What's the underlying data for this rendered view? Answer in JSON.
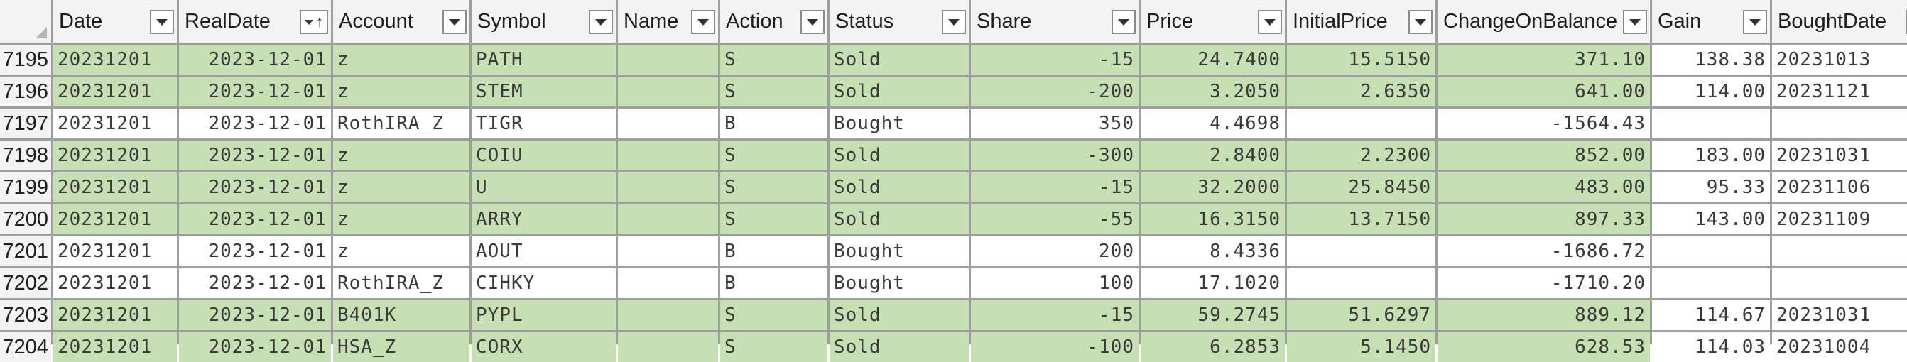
{
  "colors": {
    "sold_fill": "#c6e0b4",
    "bought_fill": "#ffffff",
    "header_fill": "#f3f3f3",
    "grid_line": "#9e9e9e"
  },
  "headers": [
    "Date",
    "RealDate",
    "Account",
    "Symbol",
    "Name",
    "Action",
    "Status",
    "Share",
    "Price",
    "InitialPrice",
    "ChangeOnBalance",
    "Gain",
    "BoughtDate"
  ],
  "header_icons": [
    "dropdown-arrow-icon",
    "sort-ascending-icon"
  ],
  "rows": [
    {
      "num": "7195",
      "Date": "20231201",
      "RealDate": "2023-12-01",
      "Account": "z",
      "Symbol": "PATH",
      "Name": "",
      "Action": "S",
      "Status": "Sold",
      "Share": "-15",
      "Price": "24.7400",
      "InitialPrice": "15.5150",
      "ChangeOnBalance": "371.10",
      "Gain": "138.38",
      "BoughtDate": "20231013"
    },
    {
      "num": "7196",
      "Date": "20231201",
      "RealDate": "2023-12-01",
      "Account": "z",
      "Symbol": "STEM",
      "Name": "",
      "Action": "S",
      "Status": "Sold",
      "Share": "-200",
      "Price": "3.2050",
      "InitialPrice": "2.6350",
      "ChangeOnBalance": "641.00",
      "Gain": "114.00",
      "BoughtDate": "20231121"
    },
    {
      "num": "7197",
      "Date": "20231201",
      "RealDate": "2023-12-01",
      "Account": "RothIRA_Z",
      "Symbol": "TIGR",
      "Name": "",
      "Action": "B",
      "Status": "Bought",
      "Share": "350",
      "Price": "4.4698",
      "InitialPrice": "",
      "ChangeOnBalance": "-1564.43",
      "Gain": "",
      "BoughtDate": ""
    },
    {
      "num": "7198",
      "Date": "20231201",
      "RealDate": "2023-12-01",
      "Account": "z",
      "Symbol": "COIU",
      "Name": "",
      "Action": "S",
      "Status": "Sold",
      "Share": "-300",
      "Price": "2.8400",
      "InitialPrice": "2.2300",
      "ChangeOnBalance": "852.00",
      "Gain": "183.00",
      "BoughtDate": "20231031"
    },
    {
      "num": "7199",
      "Date": "20231201",
      "RealDate": "2023-12-01",
      "Account": "z",
      "Symbol": "U",
      "Name": "",
      "Action": "S",
      "Status": "Sold",
      "Share": "-15",
      "Price": "32.2000",
      "InitialPrice": "25.8450",
      "ChangeOnBalance": "483.00",
      "Gain": "95.33",
      "BoughtDate": "20231106"
    },
    {
      "num": "7200",
      "Date": "20231201",
      "RealDate": "2023-12-01",
      "Account": "z",
      "Symbol": "ARRY",
      "Name": "",
      "Action": "S",
      "Status": "Sold",
      "Share": "-55",
      "Price": "16.3150",
      "InitialPrice": "13.7150",
      "ChangeOnBalance": "897.33",
      "Gain": "143.00",
      "BoughtDate": "20231109"
    },
    {
      "num": "7201",
      "Date": "20231201",
      "RealDate": "2023-12-01",
      "Account": "z",
      "Symbol": "AOUT",
      "Name": "",
      "Action": "B",
      "Status": "Bought",
      "Share": "200",
      "Price": "8.4336",
      "InitialPrice": "",
      "ChangeOnBalance": "-1686.72",
      "Gain": "",
      "BoughtDate": ""
    },
    {
      "num": "7202",
      "Date": "20231201",
      "RealDate": "2023-12-01",
      "Account": "RothIRA_Z",
      "Symbol": "CIHKY",
      "Name": "",
      "Action": "B",
      "Status": "Bought",
      "Share": "100",
      "Price": "17.1020",
      "InitialPrice": "",
      "ChangeOnBalance": "-1710.20",
      "Gain": "",
      "BoughtDate": ""
    },
    {
      "num": "7203",
      "Date": "20231201",
      "RealDate": "2023-12-01",
      "Account": "B401K",
      "Symbol": "PYPL",
      "Name": "",
      "Action": "S",
      "Status": "Sold",
      "Share": "-15",
      "Price": "59.2745",
      "InitialPrice": "51.6297",
      "ChangeOnBalance": "889.12",
      "Gain": "114.67",
      "BoughtDate": "20231031"
    },
    {
      "num": "7204",
      "Date": "20231201",
      "RealDate": "2023-12-01",
      "Account": "HSA_Z",
      "Symbol": "CORX",
      "Name": "",
      "Action": "S",
      "Status": "Sold",
      "Share": "-100",
      "Price": "6.2853",
      "InitialPrice": "5.1450",
      "ChangeOnBalance": "628.53",
      "Gain": "114.03",
      "BoughtDate": "20231004"
    }
  ]
}
